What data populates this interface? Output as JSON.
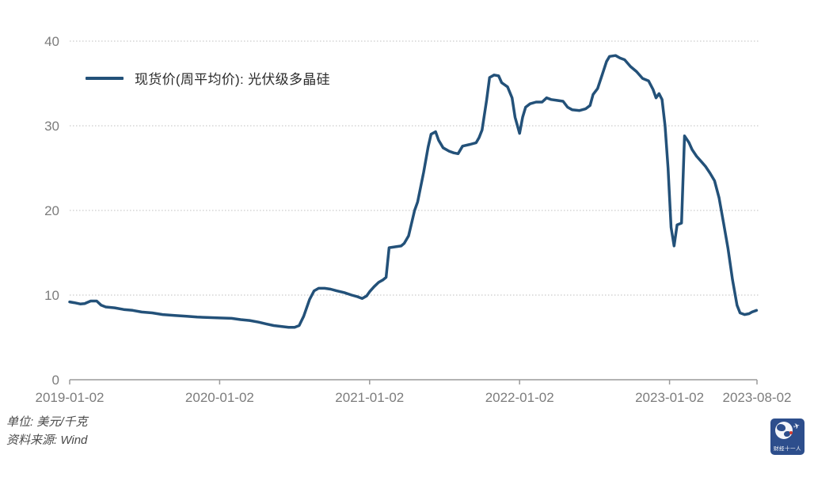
{
  "chart_data": {
    "type": "line",
    "title": "",
    "legend_label": "现货价(周平均价): 光伏级多晶硅",
    "line_color": "#235179",
    "grid_color": "#bfbfbf",
    "axis_color": "#9a9a9a",
    "tick_label_color": "#7c7c7c",
    "ylabel": "",
    "xlabel": "",
    "ylim": [
      0,
      40
    ],
    "y_ticks": [
      0,
      10,
      20,
      30,
      40
    ],
    "x_tick_positions": [
      0,
      1,
      2,
      3,
      4,
      4.583
    ],
    "x_tick_labels": [
      "2019-01-02",
      "2020-01-02",
      "2021-01-02",
      "2022-01-02",
      "2023-01-02",
      "2023-08-02"
    ],
    "grid": "horizontal-dotted",
    "legend_position": "top-left",
    "series": [
      {
        "name": "现货价(周平均价): 光伏级多晶硅",
        "x_unit": "years since 2019-01-02",
        "y_unit": "美元/千克",
        "points": [
          [
            0.0,
            9.2
          ],
          [
            0.03,
            9.1
          ],
          [
            0.07,
            8.95
          ],
          [
            0.1,
            9.0
          ],
          [
            0.14,
            9.3
          ],
          [
            0.18,
            9.3
          ],
          [
            0.21,
            8.8
          ],
          [
            0.24,
            8.6
          ],
          [
            0.3,
            8.5
          ],
          [
            0.36,
            8.3
          ],
          [
            0.42,
            8.2
          ],
          [
            0.48,
            8.0
          ],
          [
            0.55,
            7.9
          ],
          [
            0.62,
            7.7
          ],
          [
            0.7,
            7.6
          ],
          [
            0.78,
            7.5
          ],
          [
            0.85,
            7.4
          ],
          [
            0.93,
            7.35
          ],
          [
            1.0,
            7.3
          ],
          [
            1.08,
            7.25
          ],
          [
            1.14,
            7.1
          ],
          [
            1.2,
            7.0
          ],
          [
            1.26,
            6.8
          ],
          [
            1.31,
            6.6
          ],
          [
            1.36,
            6.4
          ],
          [
            1.41,
            6.3
          ],
          [
            1.46,
            6.2
          ],
          [
            1.5,
            6.2
          ],
          [
            1.53,
            6.4
          ],
          [
            1.56,
            7.5
          ],
          [
            1.6,
            9.5
          ],
          [
            1.63,
            10.5
          ],
          [
            1.66,
            10.8
          ],
          [
            1.7,
            10.8
          ],
          [
            1.74,
            10.7
          ],
          [
            1.78,
            10.5
          ],
          [
            1.83,
            10.3
          ],
          [
            1.88,
            10.0
          ],
          [
            1.92,
            9.8
          ],
          [
            1.95,
            9.6
          ],
          [
            1.98,
            9.9
          ],
          [
            2.0,
            10.4
          ],
          [
            2.03,
            11.0
          ],
          [
            2.06,
            11.5
          ],
          [
            2.09,
            11.8
          ],
          [
            2.11,
            12.1
          ],
          [
            2.13,
            15.6
          ],
          [
            2.17,
            15.7
          ],
          [
            2.21,
            15.8
          ],
          [
            2.23,
            16.1
          ],
          [
            2.26,
            17.0
          ],
          [
            2.3,
            20.0
          ],
          [
            2.32,
            21.0
          ],
          [
            2.36,
            24.5
          ],
          [
            2.39,
            27.5
          ],
          [
            2.41,
            29.0
          ],
          [
            2.44,
            29.3
          ],
          [
            2.46,
            28.3
          ],
          [
            2.49,
            27.4
          ],
          [
            2.53,
            27.0
          ],
          [
            2.56,
            26.8
          ],
          [
            2.59,
            26.7
          ],
          [
            2.62,
            27.6
          ],
          [
            2.67,
            27.8
          ],
          [
            2.71,
            28.0
          ],
          [
            2.73,
            28.6
          ],
          [
            2.75,
            29.5
          ],
          [
            2.78,
            33.0
          ],
          [
            2.8,
            35.7
          ],
          [
            2.83,
            36.0
          ],
          [
            2.86,
            35.9
          ],
          [
            2.88,
            35.1
          ],
          [
            2.92,
            34.6
          ],
          [
            2.95,
            33.3
          ],
          [
            2.97,
            31.0
          ],
          [
            3.0,
            29.1
          ],
          [
            3.02,
            31.0
          ],
          [
            3.04,
            32.2
          ],
          [
            3.07,
            32.6
          ],
          [
            3.11,
            32.8
          ],
          [
            3.15,
            32.8
          ],
          [
            3.18,
            33.3
          ],
          [
            3.21,
            33.1
          ],
          [
            3.25,
            33.0
          ],
          [
            3.29,
            32.9
          ],
          [
            3.32,
            32.2
          ],
          [
            3.35,
            31.9
          ],
          [
            3.4,
            31.8
          ],
          [
            3.44,
            32.0
          ],
          [
            3.47,
            32.4
          ],
          [
            3.49,
            33.7
          ],
          [
            3.52,
            34.4
          ],
          [
            3.55,
            36.0
          ],
          [
            3.58,
            37.6
          ],
          [
            3.6,
            38.2
          ],
          [
            3.64,
            38.3
          ],
          [
            3.67,
            38.0
          ],
          [
            3.7,
            37.8
          ],
          [
            3.74,
            37.0
          ],
          [
            3.78,
            36.4
          ],
          [
            3.82,
            35.6
          ],
          [
            3.86,
            35.3
          ],
          [
            3.89,
            34.3
          ],
          [
            3.91,
            33.3
          ],
          [
            3.93,
            33.8
          ],
          [
            3.95,
            33.1
          ],
          [
            3.97,
            30.0
          ],
          [
            3.99,
            25.0
          ],
          [
            4.01,
            18.0
          ],
          [
            4.03,
            15.8
          ],
          [
            4.05,
            18.3
          ],
          [
            4.08,
            18.5
          ],
          [
            4.1,
            28.8
          ],
          [
            4.13,
            28.0
          ],
          [
            4.15,
            27.2
          ],
          [
            4.18,
            26.4
          ],
          [
            4.21,
            25.8
          ],
          [
            4.24,
            25.2
          ],
          [
            4.27,
            24.4
          ],
          [
            4.3,
            23.5
          ],
          [
            4.33,
            21.5
          ],
          [
            4.36,
            18.5
          ],
          [
            4.39,
            15.5
          ],
          [
            4.42,
            11.8
          ],
          [
            4.45,
            8.8
          ],
          [
            4.47,
            7.9
          ],
          [
            4.5,
            7.7
          ],
          [
            4.53,
            7.8
          ],
          [
            4.55,
            8.0
          ],
          [
            4.58,
            8.2
          ]
        ]
      }
    ]
  },
  "footer": {
    "unit_note": "单位: 美元/千克",
    "source_note": "资料来源: Wind"
  },
  "logo": {
    "text": "财经十一人",
    "bg_color": "#2d4e8c"
  }
}
